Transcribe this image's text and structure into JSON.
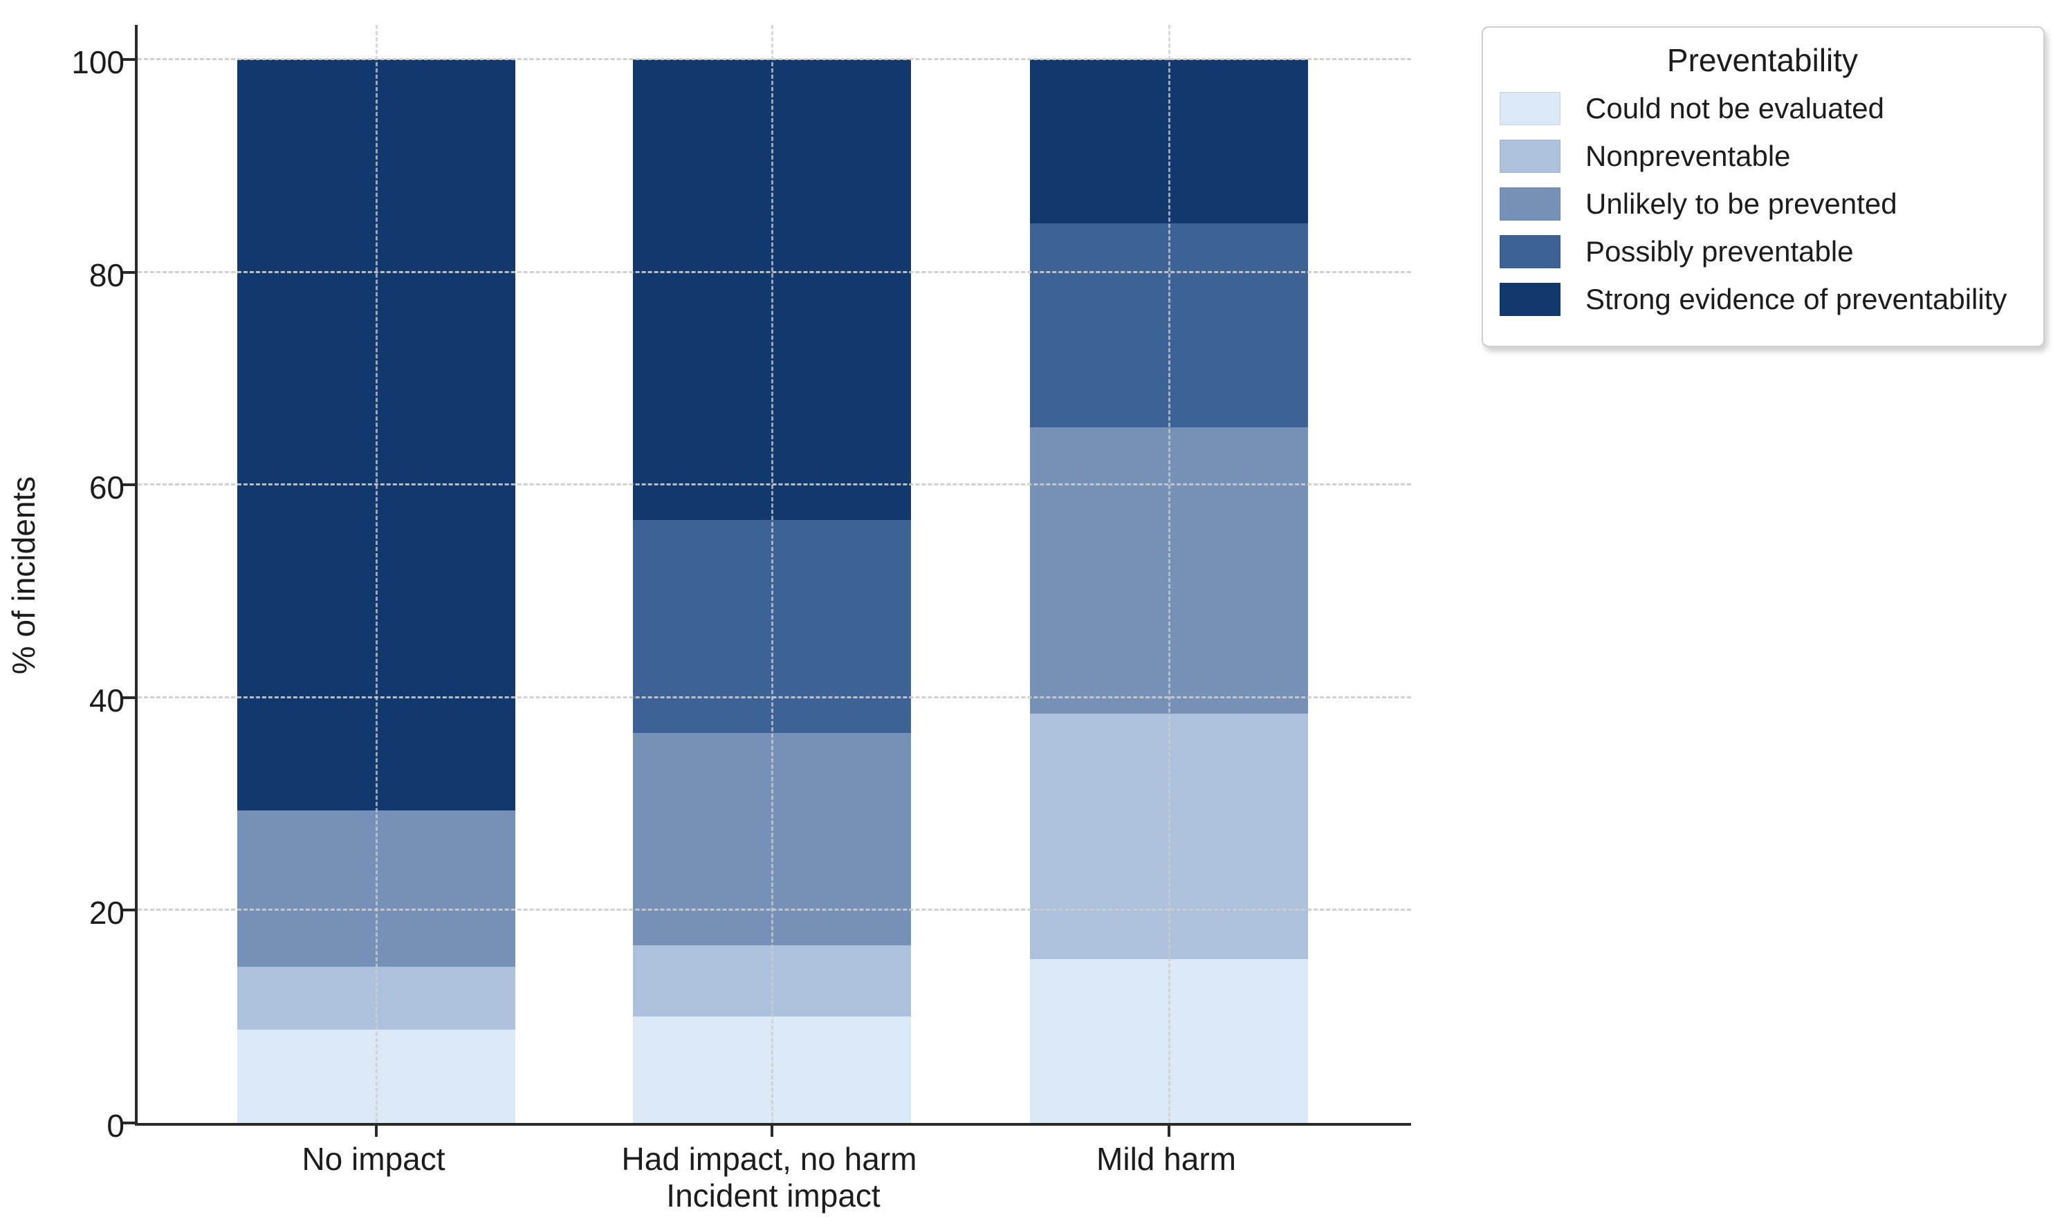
{
  "figure": {
    "background": "#ffffff",
    "text_color": "#1c1c1c",
    "spine_color": "#2a2a2a",
    "grid_color": "#cdcdcd"
  },
  "axes": {
    "ylabel": "% of incidents",
    "xlabel": "Incident impact",
    "ytick_values": [
      0,
      20,
      40,
      60,
      80,
      100
    ],
    "xtick_labels": [
      "No impact",
      "Had impact, no harm",
      "Mild harm"
    ]
  },
  "legend": {
    "title": "Preventability",
    "items": [
      {
        "label": "Could not be evaluated",
        "color": "#dbe9f6"
      },
      {
        "label": "Nonpreventable",
        "color": "#abc1dc"
      },
      {
        "label": "Unlikely to be prevented",
        "color": "#7691b8"
      },
      {
        "label": "Possibly preventable",
        "color": "#3d6296"
      },
      {
        "label": "Strong evidence of preventability",
        "color": "#12396d"
      }
    ]
  },
  "chart_data": {
    "type": "bar",
    "stacked": true,
    "orientation": "vertical",
    "title": "",
    "xlabel": "Incident impact",
    "ylabel": "% of incidents",
    "ylim": [
      0,
      100
    ],
    "grid": true,
    "legend_title": "Preventability",
    "legend_position": "upper right, outside plot",
    "categories": [
      "No impact",
      "Had impact, no harm",
      "Mild harm"
    ],
    "series": [
      {
        "name": "Could not be evaluated",
        "color": "#dbe9f6",
        "values": [
          8.8,
          10.0,
          15.4
        ]
      },
      {
        "name": "Nonpreventable",
        "color": "#abc1dc",
        "values": [
          5.9,
          6.7,
          23.1
        ]
      },
      {
        "name": "Unlikely to be prevented",
        "color": "#7691b8",
        "values": [
          14.7,
          20.0,
          26.9
        ]
      },
      {
        "name": "Possibly preventable",
        "color": "#3d6296",
        "values": [
          0.0,
          20.0,
          19.2
        ]
      },
      {
        "name": "Strong evidence of preventability",
        "color": "#12396d",
        "values": [
          70.6,
          43.3,
          15.4
        ]
      }
    ]
  }
}
